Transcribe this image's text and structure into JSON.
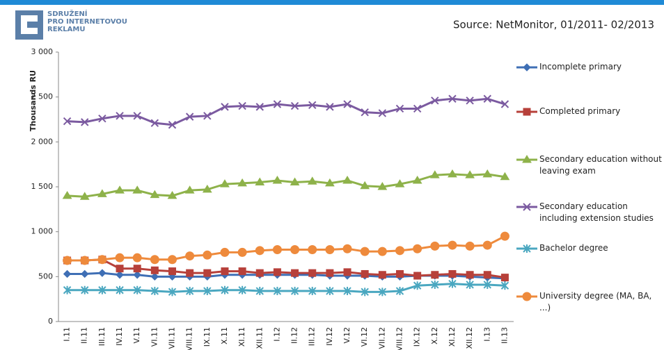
{
  "header": {
    "logo_lines": [
      "SDRUŽENÍ",
      "PRO INTERNETOVOU",
      "REKLAMU"
    ],
    "source": "Source: NetMonitor, 01/2011- 02/2013"
  },
  "chart_data": {
    "type": "line",
    "y_label": "Thousands RU",
    "categories": [
      "I.11",
      "II.11",
      "III.11",
      "IV.11",
      "V.11",
      "VI.11",
      "VII.11",
      "VIII.11",
      "IX.11",
      "X.11",
      "XI.11",
      "XII.11",
      "I.12",
      "II.12",
      "III.12",
      "IV.12",
      "V.12",
      "VI.12",
      "VII.12",
      "VIII.12",
      "IX.12",
      "X.12",
      "XI.12",
      "XII.12",
      "I.13",
      "II.13"
    ],
    "ylim": [
      0,
      3000
    ],
    "yticks": [
      0,
      500,
      {
        "value": 1000,
        "label": "1 000"
      },
      {
        "value": 1500,
        "label": "1 500"
      },
      {
        "value": 2000,
        "label": "2 000"
      },
      {
        "value": 2500,
        "label": "2 500"
      },
      {
        "value": 3000,
        "label": "3 000"
      }
    ],
    "series": [
      {
        "name": "Incomplete primary",
        "color": "#3f6fb5",
        "marker": "diamond",
        "values": [
          530,
          530,
          540,
          520,
          520,
          500,
          500,
          500,
          500,
          520,
          520,
          520,
          520,
          520,
          520,
          510,
          510,
          510,
          500,
          500,
          510,
          510,
          510,
          500,
          490,
          480
        ]
      },
      {
        "name": "Completed primary",
        "color": "#b7403a",
        "marker": "square",
        "values": [
          680,
          680,
          690,
          590,
          590,
          570,
          560,
          540,
          540,
          560,
          560,
          540,
          550,
          540,
          540,
          540,
          550,
          530,
          520,
          530,
          510,
          520,
          530,
          520,
          520,
          490
        ]
      },
      {
        "name": "Secondary education without leaving exam",
        "color": "#8eb24a",
        "marker": "triangle",
        "values": [
          1400,
          1390,
          1420,
          1460,
          1460,
          1410,
          1400,
          1460,
          1470,
          1530,
          1540,
          1550,
          1570,
          1550,
          1560,
          1540,
          1570,
          1510,
          1500,
          1530,
          1570,
          1630,
          1640,
          1630,
          1640,
          1610
        ]
      },
      {
        "name": "Secondary education including extension studies",
        "color": "#7b5aa0",
        "marker": "x",
        "values": [
          2230,
          2220,
          2260,
          2290,
          2290,
          2210,
          2190,
          2280,
          2290,
          2390,
          2400,
          2390,
          2420,
          2400,
          2410,
          2390,
          2420,
          2330,
          2320,
          2370,
          2370,
          2460,
          2480,
          2460,
          2480,
          2420
        ]
      },
      {
        "name": "Bachelor degree",
        "color": "#4aa7c0",
        "marker": "star",
        "values": [
          350,
          350,
          350,
          350,
          350,
          340,
          330,
          340,
          340,
          350,
          350,
          340,
          340,
          340,
          340,
          340,
          340,
          330,
          330,
          340,
          400,
          410,
          420,
          410,
          410,
          400
        ]
      },
      {
        "name": "University degree (MA, BA, ...)",
        "color": "#ee8a3c",
        "marker": "circle",
        "values": [
          680,
          680,
          690,
          710,
          710,
          690,
          690,
          730,
          740,
          770,
          770,
          790,
          800,
          800,
          800,
          800,
          810,
          780,
          780,
          790,
          810,
          840,
          850,
          840,
          850,
          950
        ]
      }
    ]
  }
}
